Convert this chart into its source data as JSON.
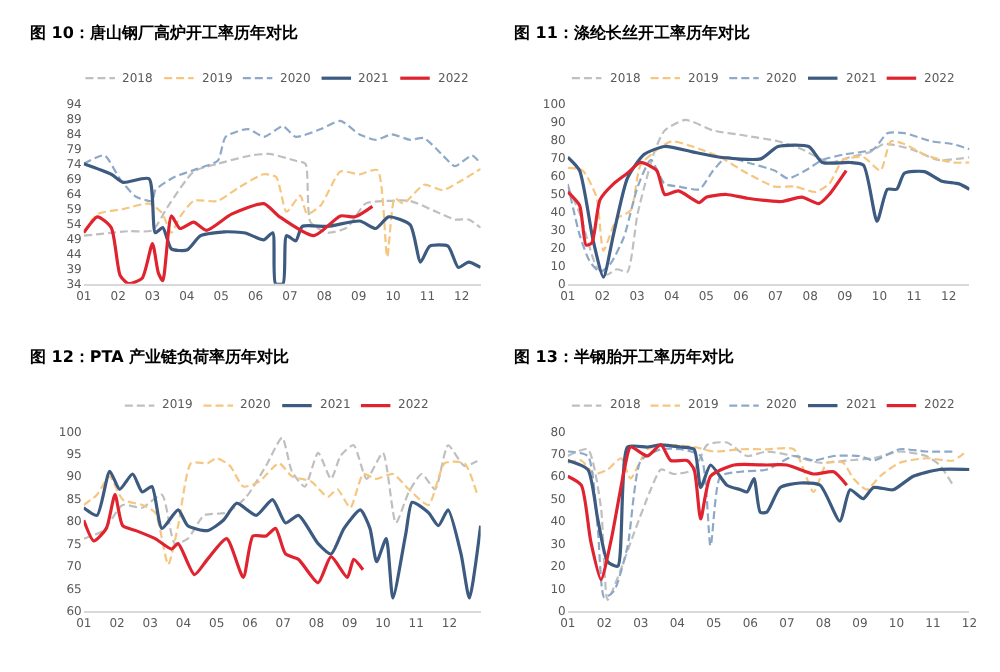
{
  "chart_data": [
    {
      "type": "line",
      "title": "图 10：唐山钢厂高炉开工率历年对比",
      "legend": "top",
      "grid": false,
      "xlim": [
        1,
        12.55
      ],
      "ylim": [
        34,
        94
      ],
      "yticks": [
        34,
        39,
        44,
        49,
        54,
        59,
        64,
        69,
        74,
        79,
        84,
        89,
        94
      ],
      "xticks": [
        {
          "value": 1,
          "label": "01"
        },
        {
          "value": 2,
          "label": "02"
        },
        {
          "value": 3,
          "label": "03"
        },
        {
          "value": 4,
          "label": "04"
        },
        {
          "value": 5,
          "label": "05"
        },
        {
          "value": 6,
          "label": "06"
        },
        {
          "value": 7,
          "label": "07"
        },
        {
          "value": 8,
          "label": "08"
        },
        {
          "value": 9,
          "label": "09"
        },
        {
          "value": 10,
          "label": "10"
        },
        {
          "value": 11,
          "label": "11"
        },
        {
          "value": 12,
          "label": "12"
        }
      ],
      "series": [
        {
          "name": "2018",
          "color": "#bfbfbf",
          "line_style": "dashed",
          "x": [
            1,
            2.3,
            3,
            3.45,
            4.2,
            4.9,
            5.87,
            6.4,
            7.17,
            7.45,
            7.6,
            8.1,
            8.66,
            9.2,
            9.77,
            10.5,
            11.26,
            11.8,
            12.2,
            12.55
          ],
          "values": [
            50,
            51.5,
            51.8,
            59.8,
            71.4,
            74,
            76.8,
            77.3,
            75,
            74,
            54.5,
            51,
            52.7,
            60.7,
            61.6,
            61.6,
            58,
            55.4,
            55.4,
            52.7
          ]
        },
        {
          "name": "2019",
          "color": "#f5c67f",
          "line_style": "dashed",
          "x": [
            1,
            1.4,
            2.15,
            2.9,
            3.27,
            3.55,
            3.8,
            4.2,
            4.9,
            5.5,
            6.24,
            6.6,
            6.9,
            7.3,
            7.5,
            7.9,
            8.47,
            9.03,
            9.55,
            9.83,
            10.05,
            10.3,
            10.9,
            11.45,
            11.9,
            12.55
          ],
          "values": [
            51,
            57.2,
            58.9,
            60.7,
            57.7,
            51,
            56.3,
            61.6,
            61.6,
            66,
            70.5,
            69.6,
            58,
            63.4,
            57.2,
            60.2,
            71.4,
            70.5,
            71.9,
            42.9,
            62.5,
            60.7,
            67,
            65.2,
            67.8,
            72.3
          ]
        },
        {
          "name": "2020",
          "color": "#8ea9c8",
          "line_style": "dashed",
          "x": [
            1,
            1.6,
            2.06,
            2.52,
            3,
            3.08,
            3.64,
            4.3,
            4.9,
            5.13,
            5.78,
            6.24,
            6.8,
            7.17,
            7.9,
            8.47,
            9.03,
            9.5,
            9.96,
            10.5,
            10.9,
            11.45,
            11.8,
            12.3,
            12.55
          ],
          "values": [
            74,
            76.8,
            68.8,
            63,
            61.6,
            65.2,
            69.6,
            72.3,
            75,
            83,
            85.6,
            83,
            86.5,
            83,
            85.6,
            88.3,
            83.8,
            82,
            83.8,
            82,
            82.6,
            76.8,
            73.2,
            76.8,
            74
          ]
        },
        {
          "name": "2021",
          "color": "#3d5a80",
          "line_style": "solid",
          "x": [
            1,
            1.8,
            2.15,
            2.9,
            3.08,
            3.3,
            3.55,
            4,
            4.4,
            5.1,
            5.7,
            6.24,
            6.5,
            6.58,
            6.8,
            6.9,
            7.17,
            7.36,
            8.1,
            9.03,
            9.5,
            9.87,
            10.5,
            10.8,
            11.07,
            11.6,
            11.9,
            12.2,
            12.55
          ],
          "values": [
            74,
            70.5,
            67.8,
            69,
            51,
            52.7,
            45.6,
            45.2,
            50,
            51.3,
            50.9,
            48.6,
            51,
            34,
            34,
            50,
            48.3,
            53.1,
            53.1,
            54.9,
            52.4,
            56.3,
            53.6,
            41.2,
            46.5,
            46.5,
            39.4,
            41.2,
            39.4
          ]
        },
        {
          "name": "2022",
          "color": "#e0242f",
          "line_style": "solid",
          "x": [
            1,
            1.4,
            1.8,
            2.06,
            2.3,
            2.7,
            3,
            3.17,
            3.3,
            3.55,
            3.8,
            4.2,
            4.57,
            5.3,
            6.24,
            6.7,
            7.7,
            8.47,
            8.9,
            9.4
          ],
          "values": [
            51,
            56.3,
            52.7,
            36.7,
            34,
            35.8,
            47.4,
            37.6,
            35,
            56.6,
            52.4,
            54.5,
            51.8,
            57.2,
            60.7,
            56.3,
            50,
            56.6,
            56.3,
            59.8
          ]
        }
      ]
    },
    {
      "type": "line",
      "title": "图 11：涤纶长丝开工率历年对比",
      "legend": "top",
      "grid": false,
      "xlim": [
        1,
        12.6
      ],
      "ylim": [
        0,
        100
      ],
      "yticks": [
        0,
        10,
        20,
        30,
        40,
        50,
        60,
        70,
        80,
        90,
        100
      ],
      "xticks": [
        {
          "value": 1,
          "label": "01"
        },
        {
          "value": 2,
          "label": "02"
        },
        {
          "value": 3,
          "label": "03"
        },
        {
          "value": 4,
          "label": "04"
        },
        {
          "value": 5,
          "label": "05"
        },
        {
          "value": 6,
          "label": "06"
        },
        {
          "value": 7,
          "label": "07"
        },
        {
          "value": 8,
          "label": "08"
        },
        {
          "value": 9,
          "label": "09"
        },
        {
          "value": 10,
          "label": "10"
        },
        {
          "value": 11,
          "label": "11"
        },
        {
          "value": 12,
          "label": "12"
        }
      ],
      "series": [
        {
          "name": "2018",
          "color": "#bfbfbf",
          "line_style": "dashed",
          "x": [
            1,
            1.34,
            1.83,
            2.13,
            2.42,
            2.72,
            3.02,
            3.5,
            3.8,
            4.4,
            5.2,
            6.18,
            7.07,
            7.76,
            8.55,
            9.14,
            9.74,
            10.13,
            10.92,
            11.7,
            12.6
          ],
          "values": [
            54,
            39.2,
            9.5,
            5,
            8,
            6.5,
            39.2,
            73.3,
            85.2,
            91.1,
            85.2,
            82.2,
            79.2,
            74.8,
            67.4,
            70.3,
            73.3,
            77.7,
            74.8,
            68.8,
            70.3
          ]
        },
        {
          "name": "2019",
          "color": "#f5c67f",
          "line_style": "dashed",
          "x": [
            1,
            1.43,
            1.83,
            2.03,
            2.42,
            2.82,
            3.1,
            3.6,
            4,
            4.6,
            5.4,
            6.18,
            6.97,
            7.56,
            8.15,
            8.55,
            8.95,
            9.54,
            10.03,
            10.33,
            10.72,
            11.3,
            12.1,
            12.6
          ],
          "values": [
            64.4,
            62.9,
            48.1,
            18.4,
            36.2,
            40.7,
            65.9,
            74.8,
            79.2,
            76.3,
            70.3,
            61.4,
            54,
            54,
            51,
            55.5,
            68.8,
            70.3,
            62.9,
            79.2,
            77.7,
            71.8,
            67.4,
            67.4
          ]
        },
        {
          "name": "2020",
          "color": "#8ea9c8",
          "line_style": "dashed",
          "x": [
            1,
            1.34,
            1.63,
            1.93,
            2.23,
            2.62,
            3.02,
            3.4,
            3.8,
            4.2,
            4.8,
            5.2,
            5.58,
            6.18,
            6.97,
            7.36,
            7.86,
            8.35,
            8.95,
            9.83,
            10.23,
            10.72,
            11.5,
            12.1,
            12.6
          ],
          "values": [
            55.5,
            27.3,
            12.5,
            6.5,
            11,
            25.8,
            54,
            68.8,
            55.5,
            54,
            52.5,
            62.9,
            70.3,
            67.4,
            62.9,
            58.5,
            62.9,
            68.8,
            71.8,
            74.8,
            83.7,
            83.7,
            79.2,
            77.7,
            74.8
          ]
        },
        {
          "name": "2021",
          "color": "#3d5a80",
          "line_style": "solid",
          "x": [
            1,
            1.34,
            1.73,
            2.03,
            2.32,
            2.72,
            3.2,
            3.8,
            4.6,
            5.4,
            6.57,
            7.07,
            7.96,
            8.35,
            9.14,
            9.54,
            9.93,
            10.23,
            10.5,
            10.72,
            11.3,
            11.8,
            12.3,
            12.6
          ],
          "values": [
            70.3,
            62.9,
            24.3,
            3.6,
            27.3,
            58.5,
            71.8,
            76.3,
            73.3,
            70.3,
            69.4,
            76.3,
            76.3,
            67.4,
            67.4,
            65.9,
            34.7,
            52.5,
            52.5,
            61.4,
            62.3,
            57,
            55.5,
            52.5
          ]
        },
        {
          "name": "2022",
          "color": "#e0242f",
          "line_style": "solid",
          "x": [
            1,
            1.34,
            1.53,
            1.7,
            1.93,
            2.32,
            2.72,
            3.1,
            3.57,
            3.8,
            4.2,
            4.8,
            5,
            5.58,
            6.18,
            7.17,
            7.76,
            8.25,
            8.55,
            9.04
          ],
          "values": [
            51,
            43.6,
            21.4,
            22.8,
            46.6,
            55.5,
            61.4,
            67.4,
            62.9,
            49.6,
            51.6,
            45.1,
            48.1,
            49.6,
            47.5,
            45.7,
            48.1,
            44.5,
            49.6,
            62.9
          ]
        }
      ]
    },
    {
      "type": "line",
      "title": "图 12：PTA 产业链负荷率历年对比",
      "legend": "top",
      "grid": false,
      "xlim": [
        1,
        12.94
      ],
      "ylim": [
        60,
        100
      ],
      "yticks": [
        60,
        65,
        70,
        75,
        80,
        85,
        90,
        95,
        100
      ],
      "xticks": [
        {
          "value": 1,
          "label": "01"
        },
        {
          "value": 2,
          "label": "02"
        },
        {
          "value": 3,
          "label": "03"
        },
        {
          "value": 4,
          "label": "04"
        },
        {
          "value": 5,
          "label": "05"
        },
        {
          "value": 6,
          "label": "06"
        },
        {
          "value": 7,
          "label": "07"
        },
        {
          "value": 8,
          "label": "08"
        },
        {
          "value": 9,
          "label": "09"
        },
        {
          "value": 10,
          "label": "10"
        },
        {
          "value": 11,
          "label": "11"
        },
        {
          "value": 12,
          "label": "12"
        }
      ],
      "series": [
        {
          "name": "2019",
          "color": "#bfbfbf",
          "line_style": "dashed",
          "x": [
            1,
            1.59,
            2.17,
            2.76,
            3.35,
            3.74,
            4.13,
            4.62,
            5.3,
            5.89,
            6.48,
            6.97,
            7.26,
            7.65,
            8.05,
            8.44,
            8.73,
            9.12,
            9.51,
            10,
            10.39,
            10.78,
            11.17,
            11.57,
            11.96,
            12.45,
            12.84
          ],
          "values": [
            76.1,
            77.9,
            83.6,
            83,
            85.9,
            75,
            76.1,
            81.3,
            81.9,
            85.4,
            92.3,
            98.6,
            91.1,
            87.7,
            95.2,
            89.4,
            94.6,
            96.9,
            89.4,
            95.2,
            79.6,
            86.5,
            90.5,
            87.1,
            96.9,
            92.3,
            93.4
          ]
        },
        {
          "name": "2020",
          "color": "#f5c67f",
          "line_style": "dashed",
          "x": [
            1,
            1.4,
            1.78,
            2.17,
            2.76,
            3.15,
            3.54,
            3.84,
            4.23,
            4.72,
            5,
            5.4,
            5.8,
            6.28,
            6.87,
            7.26,
            7.85,
            8.34,
            8.63,
            9.02,
            9.41,
            9.8,
            10.3,
            10.78,
            11.37,
            11.86,
            12.45,
            12.84
          ],
          "values": [
            83.6,
            85.9,
            90,
            84.8,
            83.6,
            81.9,
            70.4,
            79,
            92.9,
            92.9,
            94,
            92.3,
            87.7,
            88.8,
            92.9,
            90,
            88.8,
            85.4,
            87.1,
            83,
            90.5,
            89.4,
            90.5,
            87.1,
            83.6,
            92.9,
            92.9,
            85.9
          ]
        },
        {
          "name": "2021",
          "color": "#3d5a80",
          "line_style": "solid",
          "x": [
            1,
            1.4,
            1.78,
            2.08,
            2.47,
            2.76,
            3.05,
            3.35,
            3.84,
            4.13,
            4.72,
            5.2,
            5.6,
            6.19,
            6.68,
            7.07,
            7.46,
            8.05,
            8.44,
            8.83,
            9.32,
            9.61,
            9.81,
            10.1,
            10.3,
            10.69,
            10.88,
            11.37,
            11.67,
            11.96,
            12.35,
            12.6,
            12.94
          ],
          "values": [
            83,
            81.3,
            91.1,
            87.1,
            90.5,
            86.5,
            87.7,
            78.4,
            82.5,
            79,
            77.9,
            80.2,
            84,
            81.3,
            84.8,
            79.6,
            81.3,
            75,
            72.7,
            78.4,
            82.5,
            78.4,
            71,
            76.1,
            62.9,
            77.3,
            84.2,
            81.9,
            79,
            82.5,
            72.7,
            62.9,
            79
          ]
        },
        {
          "name": "2022",
          "color": "#e0242f",
          "line_style": "solid",
          "x": [
            1,
            1.3,
            1.68,
            1.94,
            2.17,
            2.57,
            3.15,
            3.64,
            3.84,
            4.33,
            4.72,
            5.3,
            5.8,
            6.09,
            6.48,
            6.77,
            7.07,
            7.46,
            8.05,
            8.44,
            8.93,
            9.12,
            9.4
          ],
          "values": [
            80.2,
            75.6,
            78.4,
            85.9,
            79,
            77.9,
            76.1,
            73.8,
            75,
            68.1,
            71.5,
            76.1,
            67.5,
            76.7,
            76.7,
            78.4,
            72.7,
            71.5,
            66.3,
            72.1,
            67.5,
            71.5,
            69.2
          ]
        }
      ]
    },
    {
      "type": "line",
      "title": "图 13：半钢胎开工率历年对比",
      "legend": "top",
      "grid": false,
      "xlim": [
        1,
        12
      ],
      "ylim": [
        0,
        80
      ],
      "yticks": [
        0,
        10,
        20,
        30,
        40,
        50,
        60,
        70,
        80
      ],
      "xticks": [
        {
          "value": 1,
          "label": "01"
        },
        {
          "value": 2,
          "label": "02"
        },
        {
          "value": 3,
          "label": "03"
        },
        {
          "value": 4,
          "label": "04"
        },
        {
          "value": 5,
          "label": "05"
        },
        {
          "value": 6,
          "label": "06"
        },
        {
          "value": 7,
          "label": "07"
        },
        {
          "value": 8,
          "label": "08"
        },
        {
          "value": 9,
          "label": "09"
        },
        {
          "value": 10,
          "label": "10"
        },
        {
          "value": 11,
          "label": "11"
        },
        {
          "value": 12,
          "label": "12"
        }
      ],
      "series": [
        {
          "name": "2018",
          "color": "#bfbfbf",
          "line_style": "dashed",
          "x": [
            1,
            1.55,
            1.91,
            2.09,
            2.37,
            2.82,
            3.27,
            3.55,
            3.91,
            4.46,
            4.82,
            5.36,
            5.91,
            6.45,
            7.19,
            7.91,
            8.64,
            9.37,
            10.09,
            10.82,
            11.18,
            11.55
          ],
          "values": [
            69,
            72,
            46,
            5,
            15,
            35,
            54,
            63,
            61,
            63,
            74,
            75,
            69,
            71,
            69,
            66,
            67,
            68,
            71,
            69,
            65,
            56
          ]
        },
        {
          "name": "2019",
          "color": "#f5c67f",
          "line_style": "dashed",
          "x": [
            1,
            1.37,
            1.72,
            2.09,
            2.46,
            2.72,
            3.18,
            3.72,
            4.46,
            5.01,
            5.73,
            6.45,
            7.19,
            7.73,
            8.1,
            8.54,
            8.82,
            9.19,
            9.55,
            10.09,
            10.82,
            11.55,
            11.91
          ],
          "values": [
            66,
            67,
            61,
            63,
            68,
            59,
            72,
            74,
            73,
            71,
            72,
            72,
            72,
            53,
            66,
            66,
            59,
            54,
            60,
            66,
            68,
            67,
            71
          ]
        },
        {
          "name": "2020",
          "color": "#8ea9c8",
          "line_style": "dashed",
          "x": [
            1,
            1.55,
            1.82,
            2,
            2.27,
            2.64,
            3,
            3.55,
            4.09,
            4.64,
            4.91,
            5.18,
            5.73,
            6.45,
            7.19,
            7.73,
            8.28,
            9,
            9.37,
            10.09,
            10.82,
            11.55
          ],
          "values": [
            71,
            69,
            37,
            6,
            9,
            29,
            67,
            72,
            72,
            69,
            29,
            60,
            62,
            63,
            69,
            67,
            69,
            69,
            67,
            72,
            71,
            71
          ]
        },
        {
          "name": "2021",
          "color": "#3d5a80",
          "line_style": "solid",
          "x": [
            1,
            1.55,
            1.82,
            2.09,
            2.37,
            2.64,
            3.18,
            3.55,
            4.09,
            4.46,
            4.64,
            4.91,
            5.36,
            5.73,
            5.91,
            6.1,
            6.27,
            6.45,
            6.82,
            7.36,
            7.91,
            8.45,
            8.73,
            9.09,
            9.37,
            9.91,
            10.46,
            11.18,
            12
          ],
          "values": [
            67,
            63,
            41,
            22,
            20,
            73,
            73,
            74,
            73,
            72,
            55,
            65,
            56,
            54,
            53,
            59,
            44,
            44,
            55,
            57,
            56,
            40,
            54,
            50,
            55,
            54,
            60,
            63,
            63
          ]
        },
        {
          "name": "2022",
          "color": "#e0242f",
          "line_style": "solid",
          "x": [
            1,
            1.37,
            1.63,
            1.91,
            2.18,
            2.55,
            2.72,
            3.18,
            3.55,
            3.82,
            4.27,
            4.46,
            4.64,
            4.91,
            5.55,
            6.45,
            7,
            7.73,
            8.28,
            8.64
          ],
          "values": [
            60,
            56,
            31,
            14,
            31,
            63,
            73,
            69,
            74,
            67,
            67,
            63,
            41,
            60,
            65,
            65,
            65,
            61,
            62,
            56
          ]
        }
      ]
    }
  ]
}
